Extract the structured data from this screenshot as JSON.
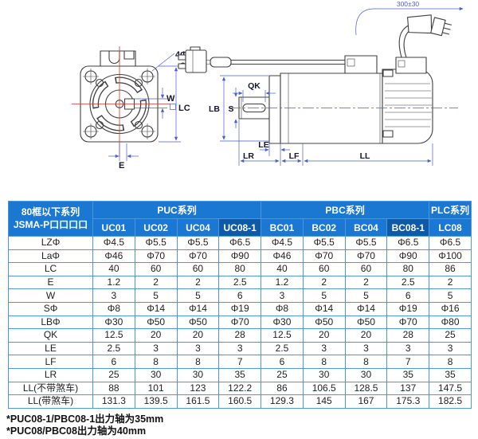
{
  "colors": {
    "header_blue": "#1b78d2",
    "header_dark_blue": "#0e5aa7",
    "grid_blue": "#4e96d9",
    "dimension_blue": "#4a5fc8",
    "centerline_red": "#c43c3c"
  },
  "drawing": {
    "labels": {
      "bolt_holes": "4ΦLZ",
      "la": "Φ La",
      "w": "W",
      "lc": "LC",
      "e": "E",
      "qk": "QK",
      "s": "S",
      "lb": "LB",
      "le": "LE",
      "lr": "LR",
      "lf": "LF",
      "ll": "LL",
      "cable_length": "300±30"
    }
  },
  "table": {
    "corner": {
      "line1": "80框以下系列",
      "line2": "JSMA-P口口口口"
    },
    "groups": [
      {
        "label": "PUC系列",
        "columns": [
          "UC01",
          "UC02",
          "UC04",
          "UC08-1"
        ]
      },
      {
        "label": "PBC系列",
        "columns": [
          "BC01",
          "BC02",
          "BC04",
          "BC08-1"
        ]
      },
      {
        "label": "PLC系列",
        "columns": [
          "LC08"
        ]
      }
    ],
    "highlight_columns": [
      "UC08-1",
      "BC08-1"
    ],
    "rows": [
      {
        "label": "LZΦ",
        "values": [
          "Φ4.5",
          "Φ5.5",
          "Φ5.5",
          "Φ6.5",
          "Φ4.5",
          "Φ5.5",
          "Φ5.5",
          "Φ6.5",
          "Φ6.5"
        ]
      },
      {
        "label": "LaΦ",
        "values": [
          "Φ46",
          "Φ70",
          "Φ70",
          "Φ90",
          "Φ46",
          "Φ70",
          "Φ70",
          "Φ90",
          "Φ100"
        ]
      },
      {
        "label": "LC",
        "values": [
          "40",
          "60",
          "60",
          "80",
          "40",
          "60",
          "60",
          "80",
          "86"
        ]
      },
      {
        "label": "E",
        "values": [
          "1.2",
          "2",
          "2",
          "2.5",
          "1.2",
          "2",
          "2",
          "2.5",
          "2"
        ]
      },
      {
        "label": "W",
        "values": [
          "3",
          "5",
          "5",
          "6",
          "3",
          "5",
          "5",
          "6",
          "5"
        ]
      },
      {
        "label": "SΦ",
        "values": [
          "Φ8",
          "Φ14",
          "Φ14",
          "Φ19",
          "Φ8",
          "Φ14",
          "Φ14",
          "Φ19",
          "Φ16"
        ]
      },
      {
        "label": "LBΦ",
        "values": [
          "Φ30",
          "Φ50",
          "Φ50",
          "Φ70",
          "Φ30",
          "Φ50",
          "Φ50",
          "Φ70",
          "Φ80"
        ]
      },
      {
        "label": "QK",
        "values": [
          "12.5",
          "20",
          "20",
          "28",
          "12.5",
          "20",
          "20",
          "28",
          "25"
        ]
      },
      {
        "label": "LE",
        "values": [
          "2.5",
          "3",
          "3",
          "3",
          "2.5",
          "3",
          "3",
          "3",
          "3"
        ]
      },
      {
        "label": "LF",
        "values": [
          "6",
          "8",
          "8",
          "7",
          "6",
          "8",
          "8",
          "7",
          "8"
        ]
      },
      {
        "label": "LR",
        "values": [
          "25",
          "30",
          "30",
          "35",
          "25",
          "30",
          "30",
          "35",
          "35"
        ]
      },
      {
        "label": "LL(不带煞车)",
        "values": [
          "88",
          "101",
          "123",
          "122.2",
          "86",
          "106.5",
          "128.5",
          "137",
          "147.5"
        ]
      },
      {
        "label": "LL(带煞车)",
        "values": [
          "131.3",
          "139.5",
          "161.5",
          "160.5",
          "129.3",
          "145",
          "167",
          "175.3",
          "182.5"
        ]
      }
    ]
  },
  "footnotes": [
    "*PUC08-1/PBC08-1出力轴为35mm",
    "*PUC08/PBC08出力轴为40mm"
  ]
}
